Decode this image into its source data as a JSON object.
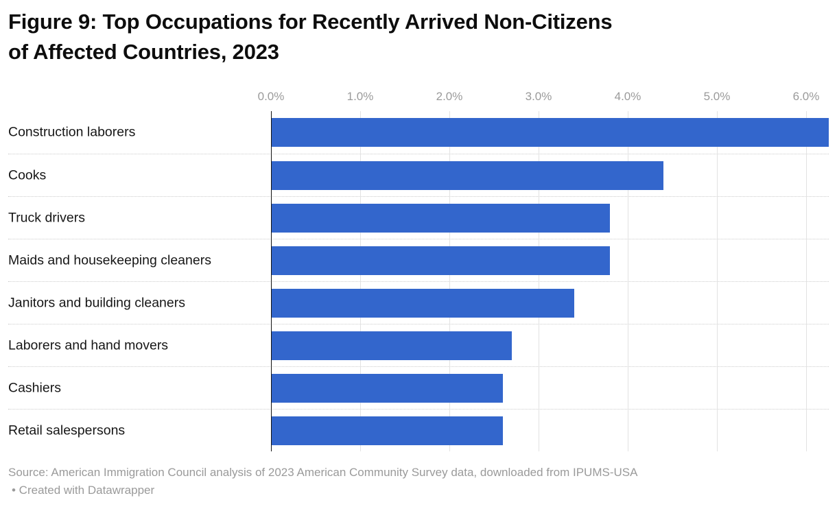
{
  "title_lines": [
    "Figure 9: Top Occupations for Recently Arrived Non-Citizens",
    "of Affected Countries, 2023"
  ],
  "chart_data": {
    "type": "bar",
    "orientation": "horizontal",
    "title": "Figure 9: Top Occupations for Recently Arrived Non-Citizens of Affected Countries, 2023",
    "categories": [
      "Construction laborers",
      "Cooks",
      "Truck drivers",
      "Maids and housekeeping cleaners",
      "Janitors and building cleaners",
      "Laborers and hand movers",
      "Cashiers",
      "Retail salespersons"
    ],
    "values": [
      6.3,
      4.4,
      3.8,
      3.8,
      3.4,
      2.7,
      2.6,
      2.6
    ],
    "value_unit": "%",
    "xlabel": "",
    "ylabel": "",
    "x_ticks": [
      "0.0%",
      "1.0%",
      "2.0%",
      "3.0%",
      "4.0%",
      "5.0%",
      "6.0%"
    ],
    "x_tick_values": [
      0,
      1,
      2,
      3,
      4,
      5,
      6
    ],
    "xlim": [
      0,
      6.25
    ],
    "grid": true,
    "legend": false,
    "bar_color": "#3366cc",
    "grid_color": "#e2e2e2",
    "axis_color": "#111111",
    "tick_label_color": "#9a9a9a"
  },
  "footer": {
    "source": "Source: American Immigration Council analysis of 2023 American Community Survey data, downloaded from IPUMS-USA",
    "credit": "• Created with Datawrapper"
  }
}
